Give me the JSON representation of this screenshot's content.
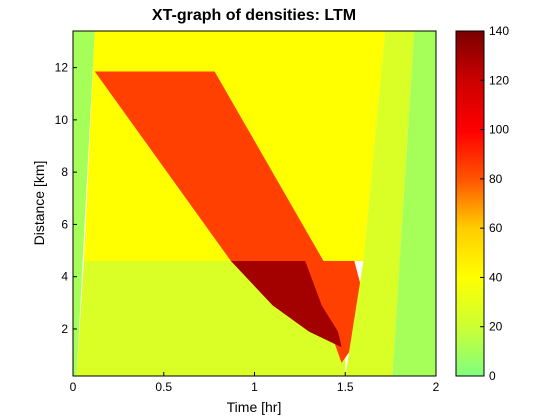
{
  "chart_data": {
    "type": "heatmap",
    "title": "XT-graph of densities: LTM",
    "xlabel": "Time [hr]",
    "ylabel": "Distance [km]",
    "xlim": [
      0,
      2
    ],
    "ylim": [
      0.2,
      13.4
    ],
    "x_ticks": [
      0,
      0.5,
      1,
      1.5,
      2
    ],
    "x_tick_labels": [
      "0",
      "0.5",
      "1",
      "1.5",
      "2"
    ],
    "y_ticks": [
      2,
      4,
      6,
      8,
      10,
      12
    ],
    "y_tick_labels": [
      "2",
      "4",
      "6",
      "8",
      "10",
      "12"
    ],
    "colorbar": {
      "range": [
        0,
        140
      ],
      "ticks": [
        0,
        20,
        40,
        60,
        80,
        100,
        120,
        140
      ],
      "tick_labels": [
        "0",
        "20",
        "40",
        "60",
        "80",
        "100",
        "120",
        "140"
      ],
      "colormap": "green-yellow-red"
    },
    "regions": [
      {
        "name": "upstream-free-flow",
        "density": 25,
        "polygon": [
          [
            0.02,
            0.2
          ],
          [
            1.5,
            0.2
          ],
          [
            1.5,
            4.6
          ],
          [
            0.06,
            4.6
          ]
        ]
      },
      {
        "name": "high-flow-upper",
        "density": 40,
        "polygon": [
          [
            0.06,
            4.6
          ],
          [
            1.6,
            4.6
          ],
          [
            1.72,
            13.4
          ],
          [
            0.12,
            13.4
          ]
        ]
      },
      {
        "name": "queue-upper",
        "density": 85,
        "polygon": [
          [
            0.12,
            11.85
          ],
          [
            0.78,
            11.85
          ],
          [
            1.38,
            4.6
          ],
          [
            0.87,
            4.6
          ]
        ]
      },
      {
        "name": "queue-lower",
        "density": 85,
        "polygon": [
          [
            1.28,
            4.6
          ],
          [
            1.55,
            4.6
          ],
          [
            1.63,
            2.5
          ],
          [
            1.52,
            1.1
          ],
          [
            1.48,
            0.7
          ]
        ]
      },
      {
        "name": "heavy-congestion",
        "density": 130,
        "polygon": [
          [
            0.87,
            4.6
          ],
          [
            1.28,
            4.6
          ],
          [
            1.37,
            2.9
          ],
          [
            1.46,
            1.9
          ],
          [
            1.48,
            1.3
          ],
          [
            1.3,
            1.9
          ],
          [
            1.1,
            2.9
          ]
        ]
      },
      {
        "name": "recovery-band",
        "density": 25,
        "polygon": [
          [
            1.5,
            0.2
          ],
          [
            1.76,
            0.2
          ],
          [
            1.88,
            13.4
          ],
          [
            1.72,
            13.4
          ],
          [
            1.6,
            4.6
          ]
        ]
      },
      {
        "name": "empty-right",
        "density": 10,
        "polygon": [
          [
            1.76,
            0.2
          ],
          [
            2.0,
            0.2
          ],
          [
            2.0,
            13.4
          ],
          [
            1.88,
            13.4
          ]
        ]
      },
      {
        "name": "empty-left",
        "density": 10,
        "polygon": [
          [
            0,
            0.2
          ],
          [
            0.02,
            0.2
          ],
          [
            0.12,
            13.4
          ],
          [
            0,
            13.4
          ]
        ]
      }
    ]
  }
}
